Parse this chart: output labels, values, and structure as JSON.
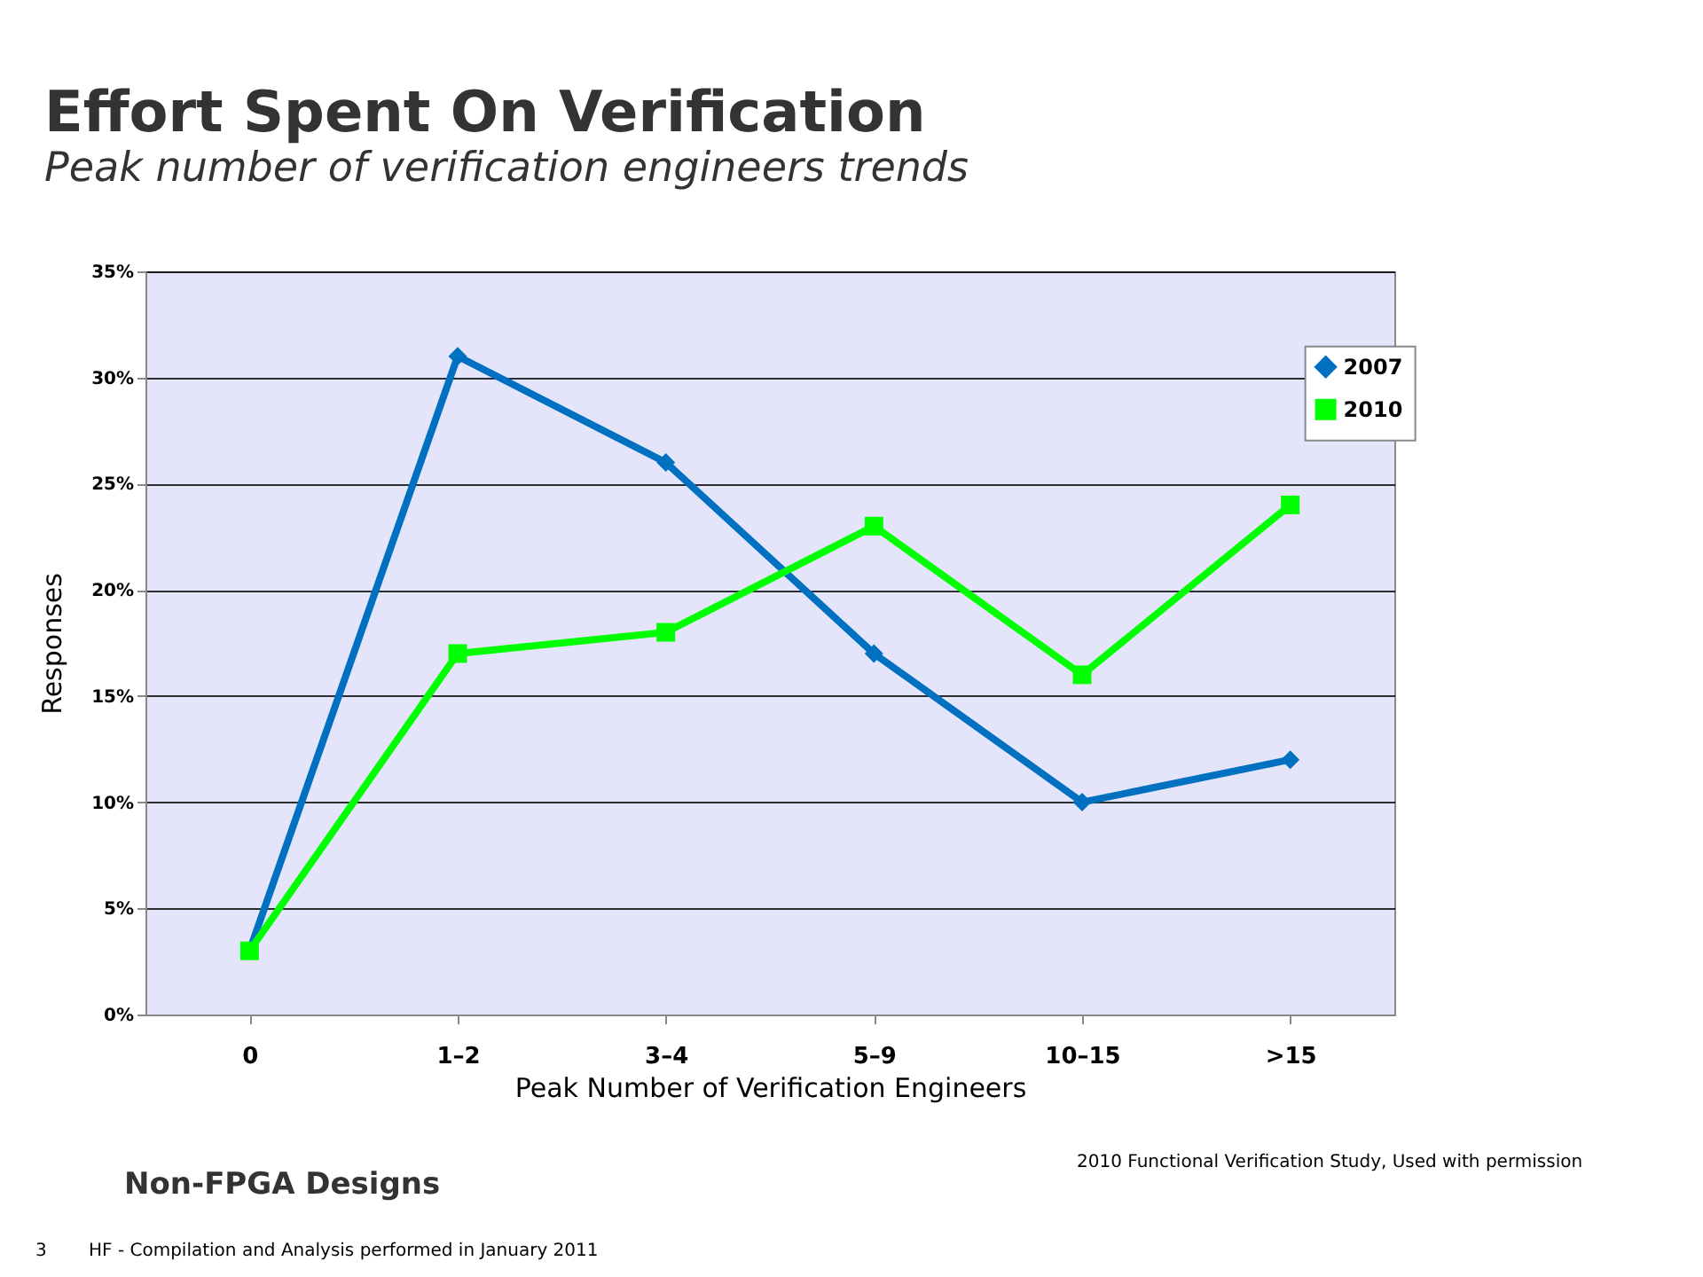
{
  "chart_data": {
    "type": "line",
    "title": "Effort Spent On Verification",
    "subtitle": "Peak number of verification engineers trends",
    "xlabel": "Peak Number of Verification Engineers",
    "ylabel": "Responses",
    "categories": [
      "0",
      "1–2",
      "3–4",
      "5–9",
      "10–15",
      ">15"
    ],
    "series": [
      {
        "name": "2007",
        "color": "#0070c0",
        "marker": "diamond",
        "values": [
          3,
          31,
          26,
          17,
          10,
          12
        ]
      },
      {
        "name": "2010",
        "color": "#00ff00",
        "marker": "square",
        "values": [
          3,
          17,
          18,
          23,
          16,
          24
        ]
      }
    ],
    "ylim": [
      0,
      35
    ],
    "yticks": [
      {
        "value": 0,
        "label": "0%"
      },
      {
        "value": 5,
        "label": "5%"
      },
      {
        "value": 10,
        "label": "10%"
      },
      {
        "value": 15,
        "label": "15%"
      },
      {
        "value": 20,
        "label": "20%"
      },
      {
        "value": 25,
        "label": "25%"
      },
      {
        "value": 30,
        "label": "30%"
      },
      {
        "value": 35,
        "label": "35%"
      }
    ],
    "grid": "y",
    "legend": "top right",
    "line_style": "solid",
    "annotations": [
      "Non-FPGA Designs",
      "2010 Functional Verification Study,  Used with permission",
      "HF - Compilation and Analysis performed in January 2011",
      "3"
    ]
  }
}
